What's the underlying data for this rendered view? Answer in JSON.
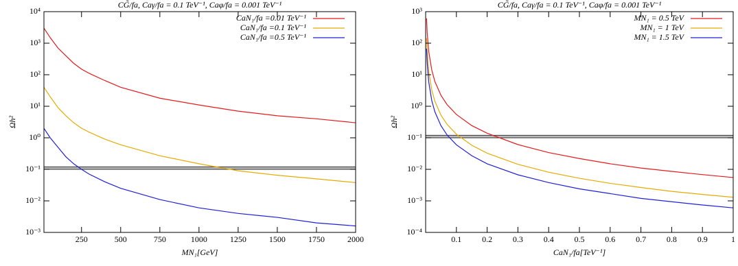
{
  "chart_data": [
    {
      "type": "line",
      "title": "CG̃/fa, Caγ/fa = 0.1 TeV⁻¹, Caφ/fa = 0.001 TeV⁻¹",
      "x_label": "MN₁[GeV]",
      "y_label": "Ωh²",
      "x": [
        10,
        50,
        100,
        150,
        200,
        250,
        300,
        400,
        500,
        750,
        1000,
        1250,
        1500,
        1750,
        2000
      ],
      "series": [
        {
          "name": "CaN₁/fa =0.01 TeV⁻¹",
          "color": "#e41a1c",
          "values": [
            3000,
            1500,
            700,
            400,
            230,
            150,
            110,
            65,
            40,
            18,
            11,
            7,
            5,
            4,
            3
          ]
        },
        {
          "name": "CaN₁/fa =0.1 TeV⁻¹",
          "color": "#e6ab02",
          "values": [
            40,
            20,
            9,
            5,
            3,
            2,
            1.5,
            0.9,
            0.6,
            0.27,
            0.15,
            0.09,
            0.065,
            0.05,
            0.038
          ]
        },
        {
          "name": "CaN₁/fa =0.5 TeV⁻¹",
          "color": "#1f1fd8",
          "values": [
            2,
            1,
            0.5,
            0.25,
            0.15,
            0.1,
            0.07,
            0.04,
            0.025,
            0.011,
            0.006,
            0.004,
            0.003,
            0.002,
            0.0016
          ]
        }
      ],
      "band": [
        0.1,
        0.12
      ],
      "xlim": [
        10,
        2000
      ],
      "xticks": [
        250,
        500,
        750,
        1000,
        1250,
        1500,
        1750,
        2000
      ],
      "ylim": [
        0.001,
        10000
      ],
      "y_log": true,
      "yticks": [
        {
          "value": 0.001,
          "label": "10⁻³"
        },
        {
          "value": 0.01,
          "label": "10⁻²"
        },
        {
          "value": 0.1,
          "label": "10⁻¹"
        },
        {
          "value": 1,
          "label": "10⁰"
        },
        {
          "value": 10,
          "label": "10¹"
        },
        {
          "value": 100,
          "label": "10²"
        },
        {
          "value": 1000,
          "label": "10³"
        },
        {
          "value": 10000,
          "label": "10⁴"
        }
      ],
      "legend": "upper right",
      "grid": false
    },
    {
      "type": "line",
      "title": "CG̃/fa, Caγ/fa = 0.1 TeV⁻¹, Caφ/fa = 0.001 TeV⁻¹",
      "x_label": "CaN₁/fa[TeV⁻¹]",
      "y_label": "Ωh²",
      "x": [
        0.003,
        0.005,
        0.01,
        0.02,
        0.03,
        0.05,
        0.07,
        0.1,
        0.15,
        0.2,
        0.3,
        0.4,
        0.5,
        0.6,
        0.7,
        0.8,
        0.9,
        1
      ],
      "series": [
        {
          "name": "MN₁ = 0.5 TeV",
          "color": "#e41a1c",
          "values": [
            611,
            220,
            55,
            14,
            6.1,
            2.2,
            1.12,
            0.55,
            0.244,
            0.14,
            0.061,
            0.034,
            0.022,
            0.015,
            0.011,
            0.0086,
            0.0068,
            0.0055
          ]
        },
        {
          "name": "MN₁ = 1 TeV",
          "color": "#e6ab02",
          "values": [
            144,
            52,
            13,
            3.25,
            1.44,
            0.52,
            0.265,
            0.13,
            0.058,
            0.0325,
            0.0144,
            0.0081,
            0.0052,
            0.0036,
            0.00265,
            0.002,
            0.0016,
            0.0013
          ]
        },
        {
          "name": "MN₁ = 1.5 TeV",
          "color": "#1f1fd8",
          "values": [
            67,
            24,
            6,
            1.5,
            0.67,
            0.24,
            0.122,
            0.06,
            0.027,
            0.015,
            0.0067,
            0.0038,
            0.0024,
            0.0017,
            0.0012,
            0.00094,
            0.00074,
            0.0006
          ]
        }
      ],
      "band": [
        0.1,
        0.12
      ],
      "xlim": [
        0,
        1
      ],
      "xticks": [
        0.1,
        0.2,
        0.3,
        0.4,
        0.5,
        0.6,
        0.7,
        0.8,
        0.9,
        1
      ],
      "ylim": [
        0.0001,
        1000
      ],
      "y_log": true,
      "yticks": [
        {
          "value": 0.0001,
          "label": "10⁻⁴"
        },
        {
          "value": 0.001,
          "label": "10⁻³"
        },
        {
          "value": 0.01,
          "label": "10⁻²"
        },
        {
          "value": 0.1,
          "label": "10⁻¹"
        },
        {
          "value": 1,
          "label": "10⁰"
        },
        {
          "value": 10,
          "label": "10¹"
        },
        {
          "value": 100,
          "label": "10²"
        },
        {
          "value": 1000,
          "label": "10³"
        }
      ],
      "legend": "upper right",
      "grid": false
    }
  ]
}
